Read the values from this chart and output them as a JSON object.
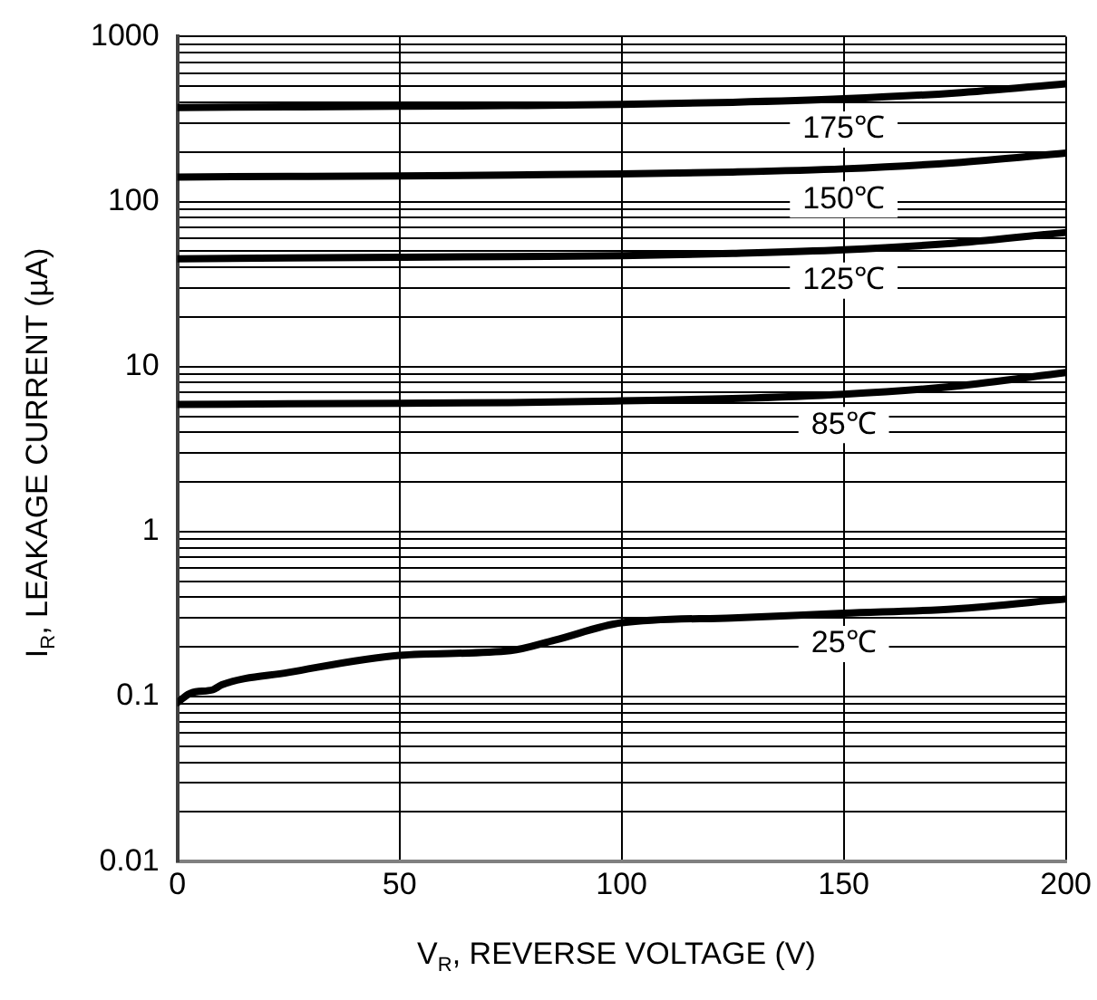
{
  "chart_data": {
    "type": "line",
    "xlabel": "V$_{R}$, REVERSE VOLTAGE (V)",
    "ylabel": "I$_{R}$, LEAKAGE CURRENT (µA)",
    "log": "y",
    "grid": true,
    "legend": false,
    "marker": "none",
    "line_style": "solid",
    "xlim": [
      0,
      200
    ],
    "xticks": [
      0,
      50,
      100,
      150,
      200
    ],
    "ylim": [
      0.01,
      1000
    ],
    "yticks": [
      0.01,
      {
        "value": 0.02,
        "label": null
      },
      {
        "value": 0.03,
        "label": null
      },
      {
        "value": 0.04,
        "label": null
      },
      {
        "value": 0.05,
        "label": null
      },
      {
        "value": 0.06,
        "label": null
      },
      {
        "value": 0.07,
        "label": null
      },
      {
        "value": 0.08,
        "label": null
      },
      {
        "value": 0.09,
        "label": null
      },
      0.1,
      {
        "value": 0.2,
        "label": null
      },
      {
        "value": 0.3,
        "label": null
      },
      {
        "value": 0.4,
        "label": null
      },
      {
        "value": 0.5,
        "label": null
      },
      {
        "value": 0.6,
        "label": null
      },
      {
        "value": 0.7,
        "label": null
      },
      {
        "value": 0.8,
        "label": null
      },
      {
        "value": 0.9,
        "label": null
      },
      1,
      {
        "value": 2,
        "label": null
      },
      {
        "value": 3,
        "label": null
      },
      {
        "value": 4,
        "label": null
      },
      {
        "value": 5,
        "label": null
      },
      {
        "value": 6,
        "label": null
      },
      {
        "value": 7,
        "label": null
      },
      {
        "value": 8,
        "label": null
      },
      {
        "value": 9,
        "label": null
      },
      10,
      {
        "value": 20,
        "label": null
      },
      {
        "value": 30,
        "label": null
      },
      {
        "value": 40,
        "label": null
      },
      {
        "value": 50,
        "label": null
      },
      {
        "value": 60,
        "label": null
      },
      {
        "value": 70,
        "label": null
      },
      {
        "value": 80,
        "label": null
      },
      {
        "value": 90,
        "label": null
      },
      100,
      {
        "value": 200,
        "label": null
      },
      {
        "value": 300,
        "label": null
      },
      {
        "value": 400,
        "label": null
      },
      {
        "value": 500,
        "label": null
      },
      {
        "value": 600,
        "label": null
      },
      {
        "value": 700,
        "label": null
      },
      {
        "value": 800,
        "label": null
      },
      {
        "value": 900,
        "label": null
      },
      1000
    ],
    "x": [
      0,
      25,
      50,
      75,
      100,
      125,
      150,
      175,
      200
    ],
    "series": [
      {
        "name": "175℃",
        "color": "#000000",
        "values": [
          372,
          375,
          378,
          382,
          388,
          400,
          420,
          455,
          518
        ]
      },
      {
        "name": "150℃",
        "color": "#000000",
        "values": [
          141,
          142,
          143,
          145,
          147,
          151,
          158,
          172,
          197
        ]
      },
      {
        "name": "125℃",
        "color": "#000000",
        "values": [
          45,
          45.5,
          46,
          46.5,
          47,
          48.5,
          51,
          56,
          65
        ]
      },
      {
        "name": "85℃",
        "color": "#000000",
        "values": [
          5.9,
          5.95,
          6,
          6.05,
          6.2,
          6.4,
          6.8,
          7.6,
          9.2
        ]
      },
      {
        "name": "25℃",
        "color": "#000000",
        "x": [
          0,
          3,
          8,
          10,
          25,
          50,
          75,
          85,
          100,
          125,
          150,
          175,
          200
        ],
        "values": [
          0.092,
          0.105,
          0.11,
          0.118,
          0.14,
          0.178,
          0.19,
          0.22,
          0.28,
          0.3,
          0.32,
          0.34,
          0.39
        ]
      }
    ]
  }
}
